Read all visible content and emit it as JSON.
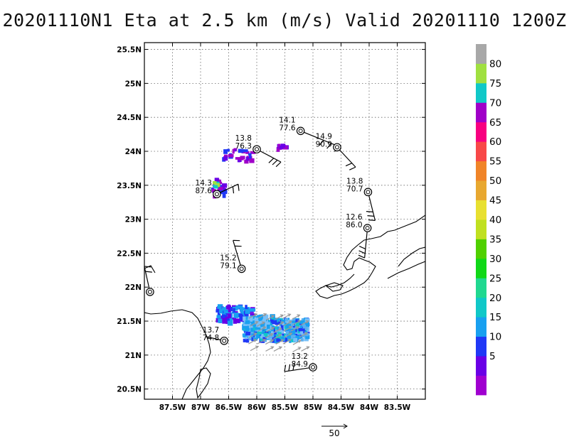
{
  "title": "20201110N1 Eta at 2.5 km (m/s) Valid 20201110  1200Z",
  "map": {
    "lon_range": [
      -88,
      -83
    ],
    "lat_range": [
      20.35,
      25.6
    ],
    "lon_ticks": [
      {
        "lon": -87.5,
        "label": "87.5W"
      },
      {
        "lon": -87,
        "label": "87W"
      },
      {
        "lon": -86.5,
        "label": "86.5W"
      },
      {
        "lon": -86,
        "label": "86W"
      },
      {
        "lon": -85.5,
        "label": "85.5W"
      },
      {
        "lon": -85,
        "label": "85W"
      },
      {
        "lon": -84.5,
        "label": "84.5W"
      },
      {
        "lon": -84,
        "label": "84W"
      },
      {
        "lon": -83.5,
        "label": "83.5W"
      }
    ],
    "lat_ticks": [
      {
        "lat": 20.5,
        "label": "20.5N"
      },
      {
        "lat": 21,
        "label": "21N"
      },
      {
        "lat": 21.5,
        "label": "21.5N"
      },
      {
        "lat": 22,
        "label": "22N"
      },
      {
        "lat": 22.5,
        "label": "22.5N"
      },
      {
        "lat": 23,
        "label": "23N"
      },
      {
        "lat": 23.5,
        "label": "23.5N"
      },
      {
        "lat": 24,
        "label": "24N"
      },
      {
        "lat": 24.5,
        "label": "24.5N"
      },
      {
        "lat": 25,
        "label": "25N"
      },
      {
        "lat": 25.5,
        "label": "25.5N"
      }
    ],
    "grid": true
  },
  "stations": [
    {
      "lon": -85.22,
      "lat": 24.3,
      "v1": "14.1",
      "v2": "77.6"
    },
    {
      "lon": -84.57,
      "lat": 24.06,
      "v1": "14.9",
      "v2": "90.9"
    },
    {
      "lon": -86.0,
      "lat": 24.03,
      "v1": "13.8",
      "v2": "76.3"
    },
    {
      "lon": -86.71,
      "lat": 23.37,
      "v1": "14.3",
      "v2": "87.6"
    },
    {
      "lon": -84.02,
      "lat": 23.4,
      "v1": "13.8",
      "v2": "70.7"
    },
    {
      "lon": -84.03,
      "lat": 22.87,
      "v1": "12.6",
      "v2": "86.0"
    },
    {
      "lon": -86.27,
      "lat": 22.27,
      "v1": "15.2",
      "v2": "79.1"
    },
    {
      "lon": -87.9,
      "lat": 21.93,
      "v1": "",
      "v2": ""
    },
    {
      "lon": -86.58,
      "lat": 21.21,
      "v1": "13.7",
      "v2": "74.8"
    },
    {
      "lon": -85.0,
      "lat": 20.82,
      "v1": "13.2",
      "v2": "84.9"
    }
  ],
  "colorbar": {
    "labels": [
      "5",
      "10",
      "15",
      "20",
      "25",
      "30",
      "35",
      "40",
      "45",
      "50",
      "55",
      "60",
      "65",
      "70",
      "75",
      "80"
    ],
    "colors": [
      "#a000d0",
      "#6a00e6",
      "#2038f6",
      "#18a0f0",
      "#10c8c8",
      "#20d890",
      "#10d818",
      "#50d000",
      "#c0e020",
      "#e8e030",
      "#e8a830",
      "#f08428",
      "#f84848",
      "#f80080",
      "#a000c8",
      "#10c8c8",
      "#a0e040",
      "#a8a8a8"
    ]
  },
  "reference_vector": {
    "label": "50"
  }
}
